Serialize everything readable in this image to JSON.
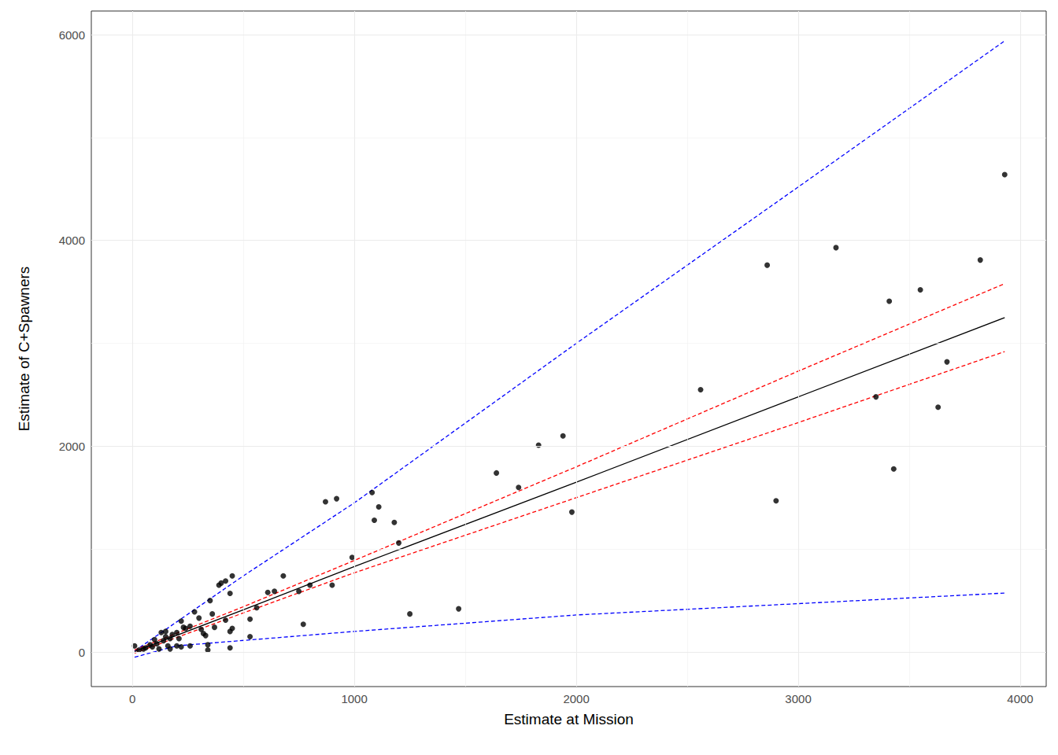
{
  "chart_data": {
    "type": "scatter",
    "x_label": "Estimate at Mission",
    "y_label": "Estimate of C+Spawners",
    "xlim": [
      -185,
      4117
    ],
    "ylim": [
      -336,
      6230
    ],
    "xticks": [
      0,
      1000,
      2000,
      3000,
      4000
    ],
    "yticks": [
      0,
      2000,
      4000,
      6000
    ],
    "grid": true,
    "series": [
      {
        "type": "line",
        "color": "#0000ff",
        "line_style": "dashed",
        "x": [
          10,
          500,
          1000,
          2000,
          3000,
          3930
        ],
        "values": [
          10,
          740,
          1450,
          3000,
          4520,
          5940
        ]
      },
      {
        "type": "line",
        "color": "#0000ff",
        "line_style": "dashed",
        "x": [
          10,
          200,
          1000,
          2000,
          3000,
          3930
        ],
        "values": [
          -50,
          60,
          200,
          360,
          470,
          573
        ]
      },
      {
        "type": "line",
        "color": "#ff0000",
        "line_style": "dashed",
        "x": [
          10,
          500,
          1000,
          2000,
          3000,
          3930
        ],
        "values": [
          20,
          440,
          890,
          1800,
          2730,
          3580
        ]
      },
      {
        "type": "line",
        "color": "#ff0000",
        "line_style": "dashed",
        "x": [
          10,
          500,
          1000,
          2000,
          3000,
          3930
        ],
        "values": [
          -10,
          380,
          770,
          1500,
          2230,
          2920
        ]
      },
      {
        "type": "line",
        "color": "#000000",
        "line_style": "solid",
        "x": [
          10,
          500,
          1000,
          2000,
          3000,
          3930
        ],
        "values": [
          5,
          410,
          830,
          1650,
          2480,
          3250
        ]
      },
      {
        "type": "scatter",
        "color": "#000000",
        "marker": "circle",
        "x": [
          3930,
          3170,
          2860,
          3820,
          3410,
          3550,
          2560,
          3670,
          3350,
          3630,
          3430,
          2900,
          1940,
          1830,
          1640,
          1740,
          1980,
          1470,
          1250,
          1200,
          1080,
          1110,
          1090,
          1180,
          920,
          870,
          990,
          900,
          800,
          770,
          750,
          680,
          640,
          610,
          560,
          530,
          530,
          450,
          440,
          420,
          400,
          390,
          420,
          440,
          450,
          440,
          350,
          360,
          370,
          340,
          340,
          320,
          310,
          300,
          280,
          260,
          260,
          230,
          220,
          220,
          210,
          200,
          180,
          170,
          160,
          150,
          140,
          130,
          120,
          110,
          100,
          90,
          80,
          60,
          50,
          30,
          10,
          200,
          170,
          150,
          240,
          330
        ],
        "values": [
          4640,
          3930,
          3760,
          3810,
          3410,
          3520,
          2550,
          2820,
          2480,
          2380,
          1780,
          1470,
          2100,
          2010,
          1740,
          1600,
          1360,
          420,
          370,
          1060,
          1550,
          1410,
          1280,
          1260,
          1490,
          1460,
          920,
          650,
          650,
          270,
          590,
          740,
          590,
          580,
          430,
          150,
          320,
          740,
          570,
          690,
          670,
          650,
          310,
          200,
          230,
          40,
          500,
          370,
          240,
          20,
          70,
          180,
          220,
          330,
          390,
          250,
          60,
          240,
          300,
          50,
          130,
          190,
          170,
          130,
          60,
          200,
          110,
          190,
          30,
          80,
          120,
          50,
          70,
          40,
          30,
          20,
          60,
          60,
          30,
          150,
          230,
          160
        ]
      }
    ]
  }
}
